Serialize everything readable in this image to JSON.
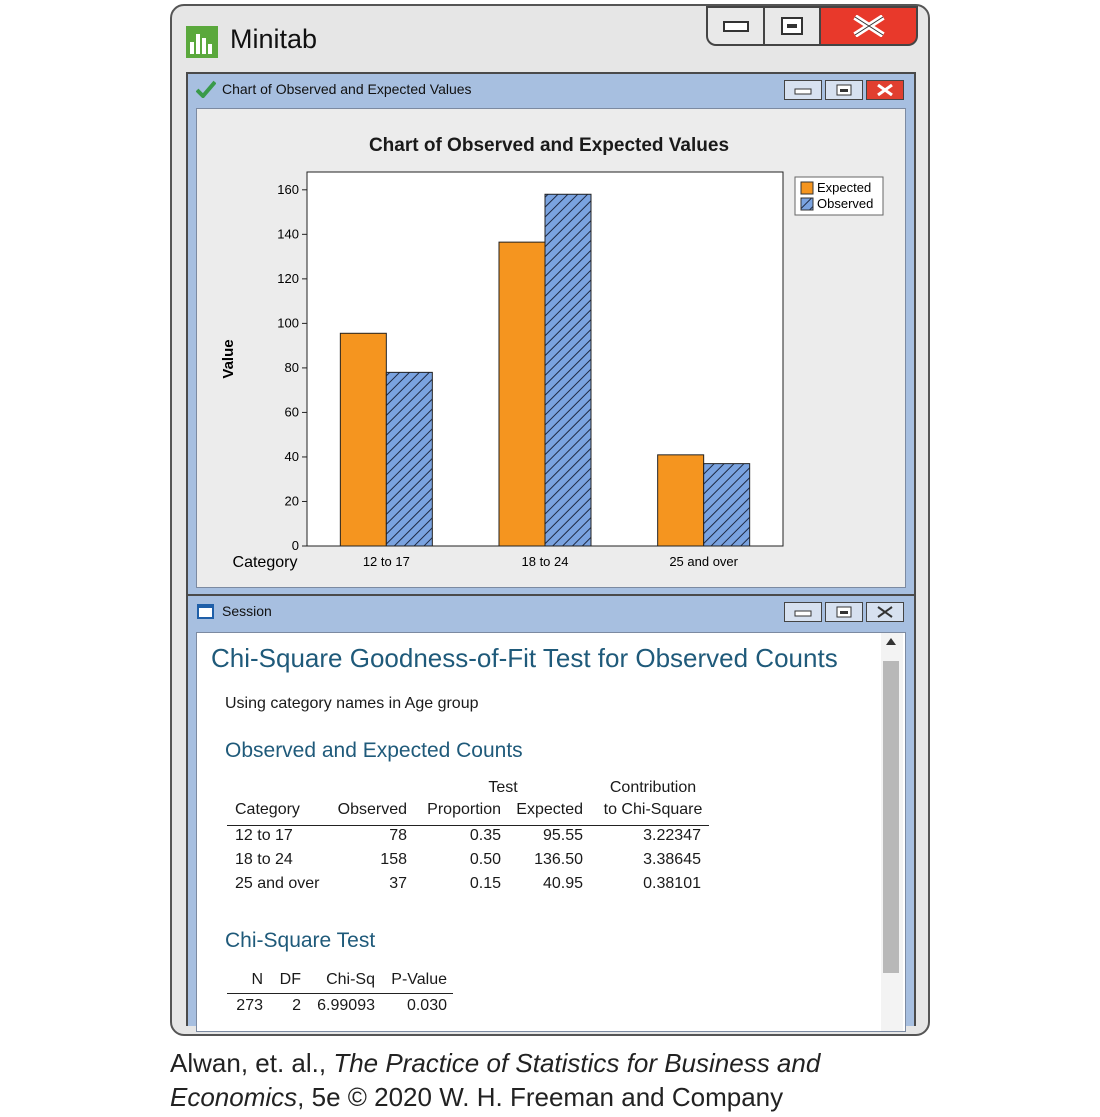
{
  "app": {
    "title": "Minitab",
    "logo_icon": "minitab-bar-logo-icon",
    "controls": [
      "minimize-icon",
      "maximize-icon",
      "close-icon"
    ],
    "close_color": "#e8392b"
  },
  "chart_window": {
    "title": "Chart of Observed and Expected Values",
    "icon": "checkmark-icon"
  },
  "chart_data": {
    "type": "bar",
    "title": "Chart of Observed and Expected Values",
    "xlabel": "Category",
    "ylabel": "Value",
    "categories": [
      "12 to 17",
      "18 to 24",
      "25 and over"
    ],
    "series": [
      {
        "name": "Expected",
        "values": [
          95.55,
          136.5,
          40.95
        ],
        "color": "#f5951f",
        "pattern": "solid"
      },
      {
        "name": "Observed",
        "values": [
          78,
          158,
          37
        ],
        "color": "#7aa3e0",
        "pattern": "hatched"
      }
    ],
    "ylim": [
      0,
      168
    ],
    "yticks": [
      "0",
      "20",
      "40",
      "60",
      "80",
      "100",
      "120",
      "140",
      "160"
    ],
    "grid": false,
    "legend_position": "top-right"
  },
  "session_window": {
    "title": "Session",
    "icon": "session-icon",
    "heading": "Chi-Square Goodness-of-Fit Test for Observed Counts",
    "note": "Using category names in Age group",
    "counts_heading": "Observed and Expected Counts",
    "counts_table": {
      "header_top": [
        "",
        "",
        "Test",
        "",
        "Contribution"
      ],
      "header_bottom": [
        "Category",
        "Observed",
        "Proportion",
        "Expected",
        "to Chi-Square"
      ],
      "rows": [
        [
          "12 to 17",
          "78",
          "0.35",
          "95.55",
          "3.22347"
        ],
        [
          "18 to 24",
          "158",
          "0.50",
          "136.50",
          "3.38645"
        ],
        [
          "25 and over",
          "37",
          "0.15",
          "40.95",
          "0.38101"
        ]
      ]
    },
    "test_heading": "Chi-Square Test",
    "test_table": {
      "header": [
        "N",
        "DF",
        "Chi-Sq",
        "P-Value"
      ],
      "row": [
        "273",
        "2",
        "6.99093",
        "0.030"
      ]
    }
  },
  "caption": {
    "authors": "Alwan, et. al., ",
    "book_title_line1": "The Practice of Statistics for Business and",
    "book_title_line2": "Economics",
    "edition_publisher": ", 5e © 2020 W. H. Freeman and Company"
  }
}
